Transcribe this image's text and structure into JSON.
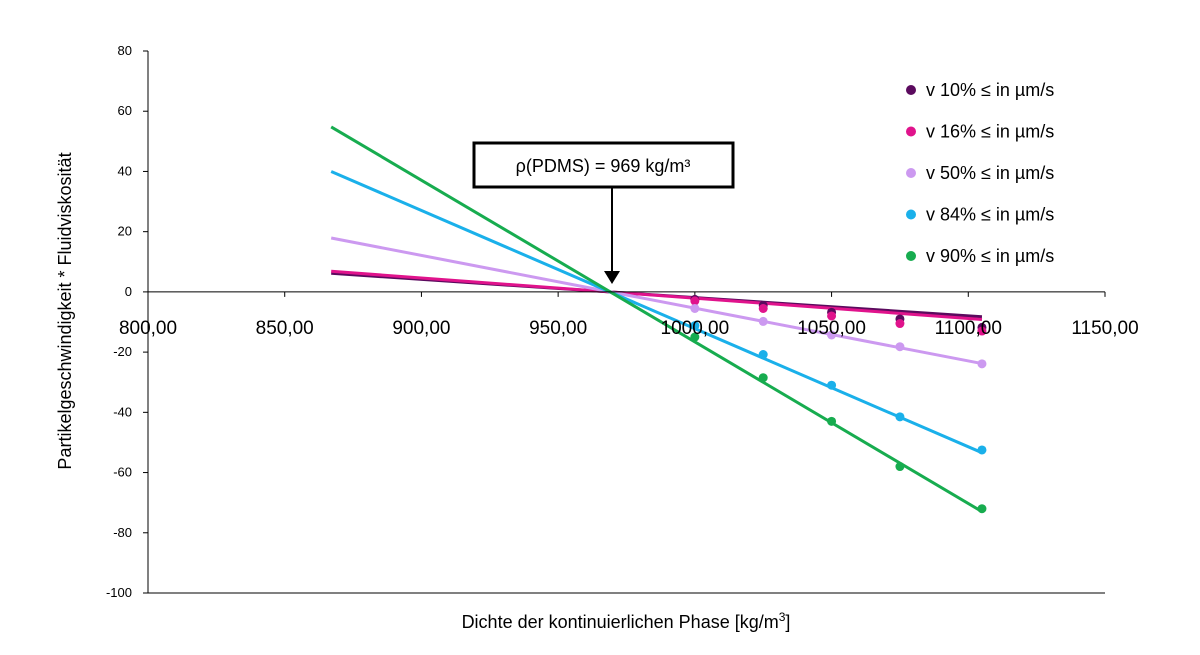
{
  "chart_data": {
    "type": "scatter",
    "title": "",
    "xlabel": "Dichte der kontinuierlichen Phase [kg/m",
    "xlabel_sup": "3",
    "xlabel_end": "]",
    "ylabel": "Partikelgeschwindigkeit * Fluidviskosität",
    "xlim": [
      800,
      1150
    ],
    "ylim": [
      -100,
      80
    ],
    "x_ticks": [
      800,
      850,
      900,
      950,
      1000,
      1050,
      1100,
      1150
    ],
    "x_tick_labels": [
      "800,00",
      "850,00",
      "900,00",
      "950,00",
      "1000,00",
      "1050,00",
      "1100,00",
      "1150,00"
    ],
    "y_ticks": [
      80,
      60,
      40,
      20,
      0,
      -20,
      -40,
      -60,
      -80,
      -100
    ],
    "y_tick_labels": [
      "80",
      "60",
      "40",
      "20",
      "0",
      "-20",
      "-40",
      "-60",
      "-80",
      "-100"
    ],
    "grid": false,
    "legend_position": "top-right",
    "trendline_range": [
      867,
      1105
    ],
    "annotation": {
      "text": "ρ(PDMS) = 969 kg/m³",
      "x": 969,
      "y": 0
    },
    "series": [
      {
        "name": "v 10% ≤ in µm/s",
        "color": "#5b0a5e",
        "x": [
          1000,
          1025,
          1050,
          1075,
          1105
        ],
        "y": [
          -2.5,
          -4.5,
          -6.8,
          -9.0,
          -11.8
        ],
        "trend": {
          "slope": -0.0607,
          "intercept": 58.8
        }
      },
      {
        "name": "v 16% ≤ in µm/s",
        "color": "#e0138c",
        "x": [
          1000,
          1025,
          1050,
          1075,
          1105
        ],
        "y": [
          -3.0,
          -5.5,
          -8.0,
          -10.5,
          -13.0
        ],
        "trend": {
          "slope": -0.0672,
          "intercept": 65.1
        }
      },
      {
        "name": "v 50% ≤ in µm/s",
        "color": "#cc99f0",
        "x": [
          1000,
          1025,
          1050,
          1075,
          1105
        ],
        "y": [
          -5.5,
          -9.8,
          -14.3,
          -18.2,
          -23.9
        ],
        "trend": {
          "slope": -0.1752,
          "intercept": 169.8
        }
      },
      {
        "name": "v 84% ≤ in µm/s",
        "color": "#1ab0ea",
        "x": [
          1000,
          1025,
          1050,
          1075,
          1105
        ],
        "y": [
          -11.2,
          -20.8,
          -31.0,
          -41.5,
          -52.5
        ],
        "trend": {
          "slope": -0.3924,
          "intercept": 380.2
        }
      },
      {
        "name": "v 90% ≤ in µm/s",
        "color": "#17ac4f",
        "x": [
          1000,
          1025,
          1050,
          1075,
          1105
        ],
        "y": [
          -15.0,
          -28.5,
          -43.0,
          -58.0,
          -72.0
        ],
        "trend": {
          "slope": -0.5368,
          "intercept": 520.2
        }
      }
    ]
  }
}
